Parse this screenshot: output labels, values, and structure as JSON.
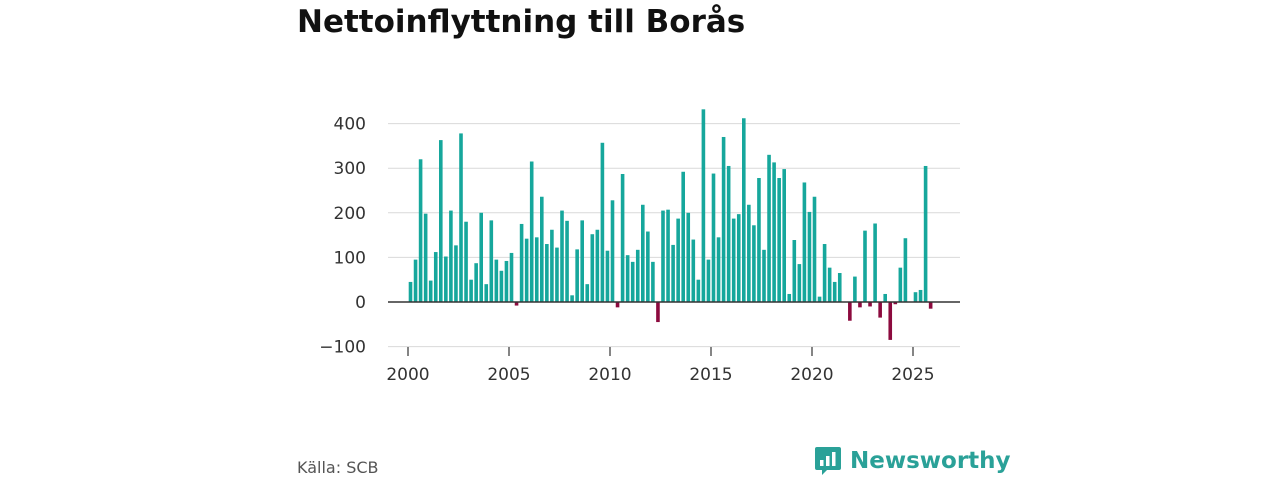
{
  "title": "Nettoinflyttning till Borås",
  "source": "Källa: SCB",
  "brand": {
    "name": "Newsworthy",
    "icon": "newsworthy-logo-icon",
    "color": "#2aa198"
  },
  "colors": {
    "positive": "#16a79c",
    "negative": "#8c0a3e",
    "grid": "#d9d9d9",
    "zero_line": "#333333"
  },
  "chart_data": {
    "type": "bar",
    "title": "Nettoinflyttning till Borås",
    "xlabel": "",
    "ylabel": "",
    "frequency": "quarterly",
    "start": "2000-Q1",
    "x_ticks": [
      "2000",
      "2005",
      "2010",
      "2015",
      "2020",
      "2025"
    ],
    "y_ticks": [
      -100,
      0,
      100,
      200,
      300,
      400
    ],
    "y_tick_labels": [
      "−100",
      "0",
      "100",
      "200",
      "300",
      "400"
    ],
    "ylim": [
      -100,
      440
    ],
    "grid": true,
    "legend": "none",
    "values": [
      45,
      95,
      320,
      198,
      48,
      112,
      363,
      102,
      205,
      127,
      378,
      180,
      50,
      87,
      200,
      40,
      183,
      95,
      70,
      92,
      110,
      -8,
      175,
      142,
      315,
      145,
      236,
      130,
      162,
      122,
      205,
      182,
      15,
      118,
      183,
      40,
      152,
      162,
      357,
      115,
      228,
      -12,
      287,
      105,
      90,
      117,
      218,
      158,
      90,
      -45,
      205,
      207,
      128,
      187,
      292,
      200,
      140,
      50,
      432,
      95,
      288,
      145,
      370,
      305,
      187,
      197,
      412,
      218,
      172,
      278,
      117,
      330,
      313,
      278,
      298,
      18,
      139,
      85,
      268,
      202,
      236,
      12,
      130,
      77,
      45,
      65,
      0,
      -42,
      57,
      -12,
      160,
      -10,
      176,
      -35,
      18,
      -85,
      -5,
      77,
      143,
      0,
      22,
      27,
      305,
      -15
    ]
  }
}
